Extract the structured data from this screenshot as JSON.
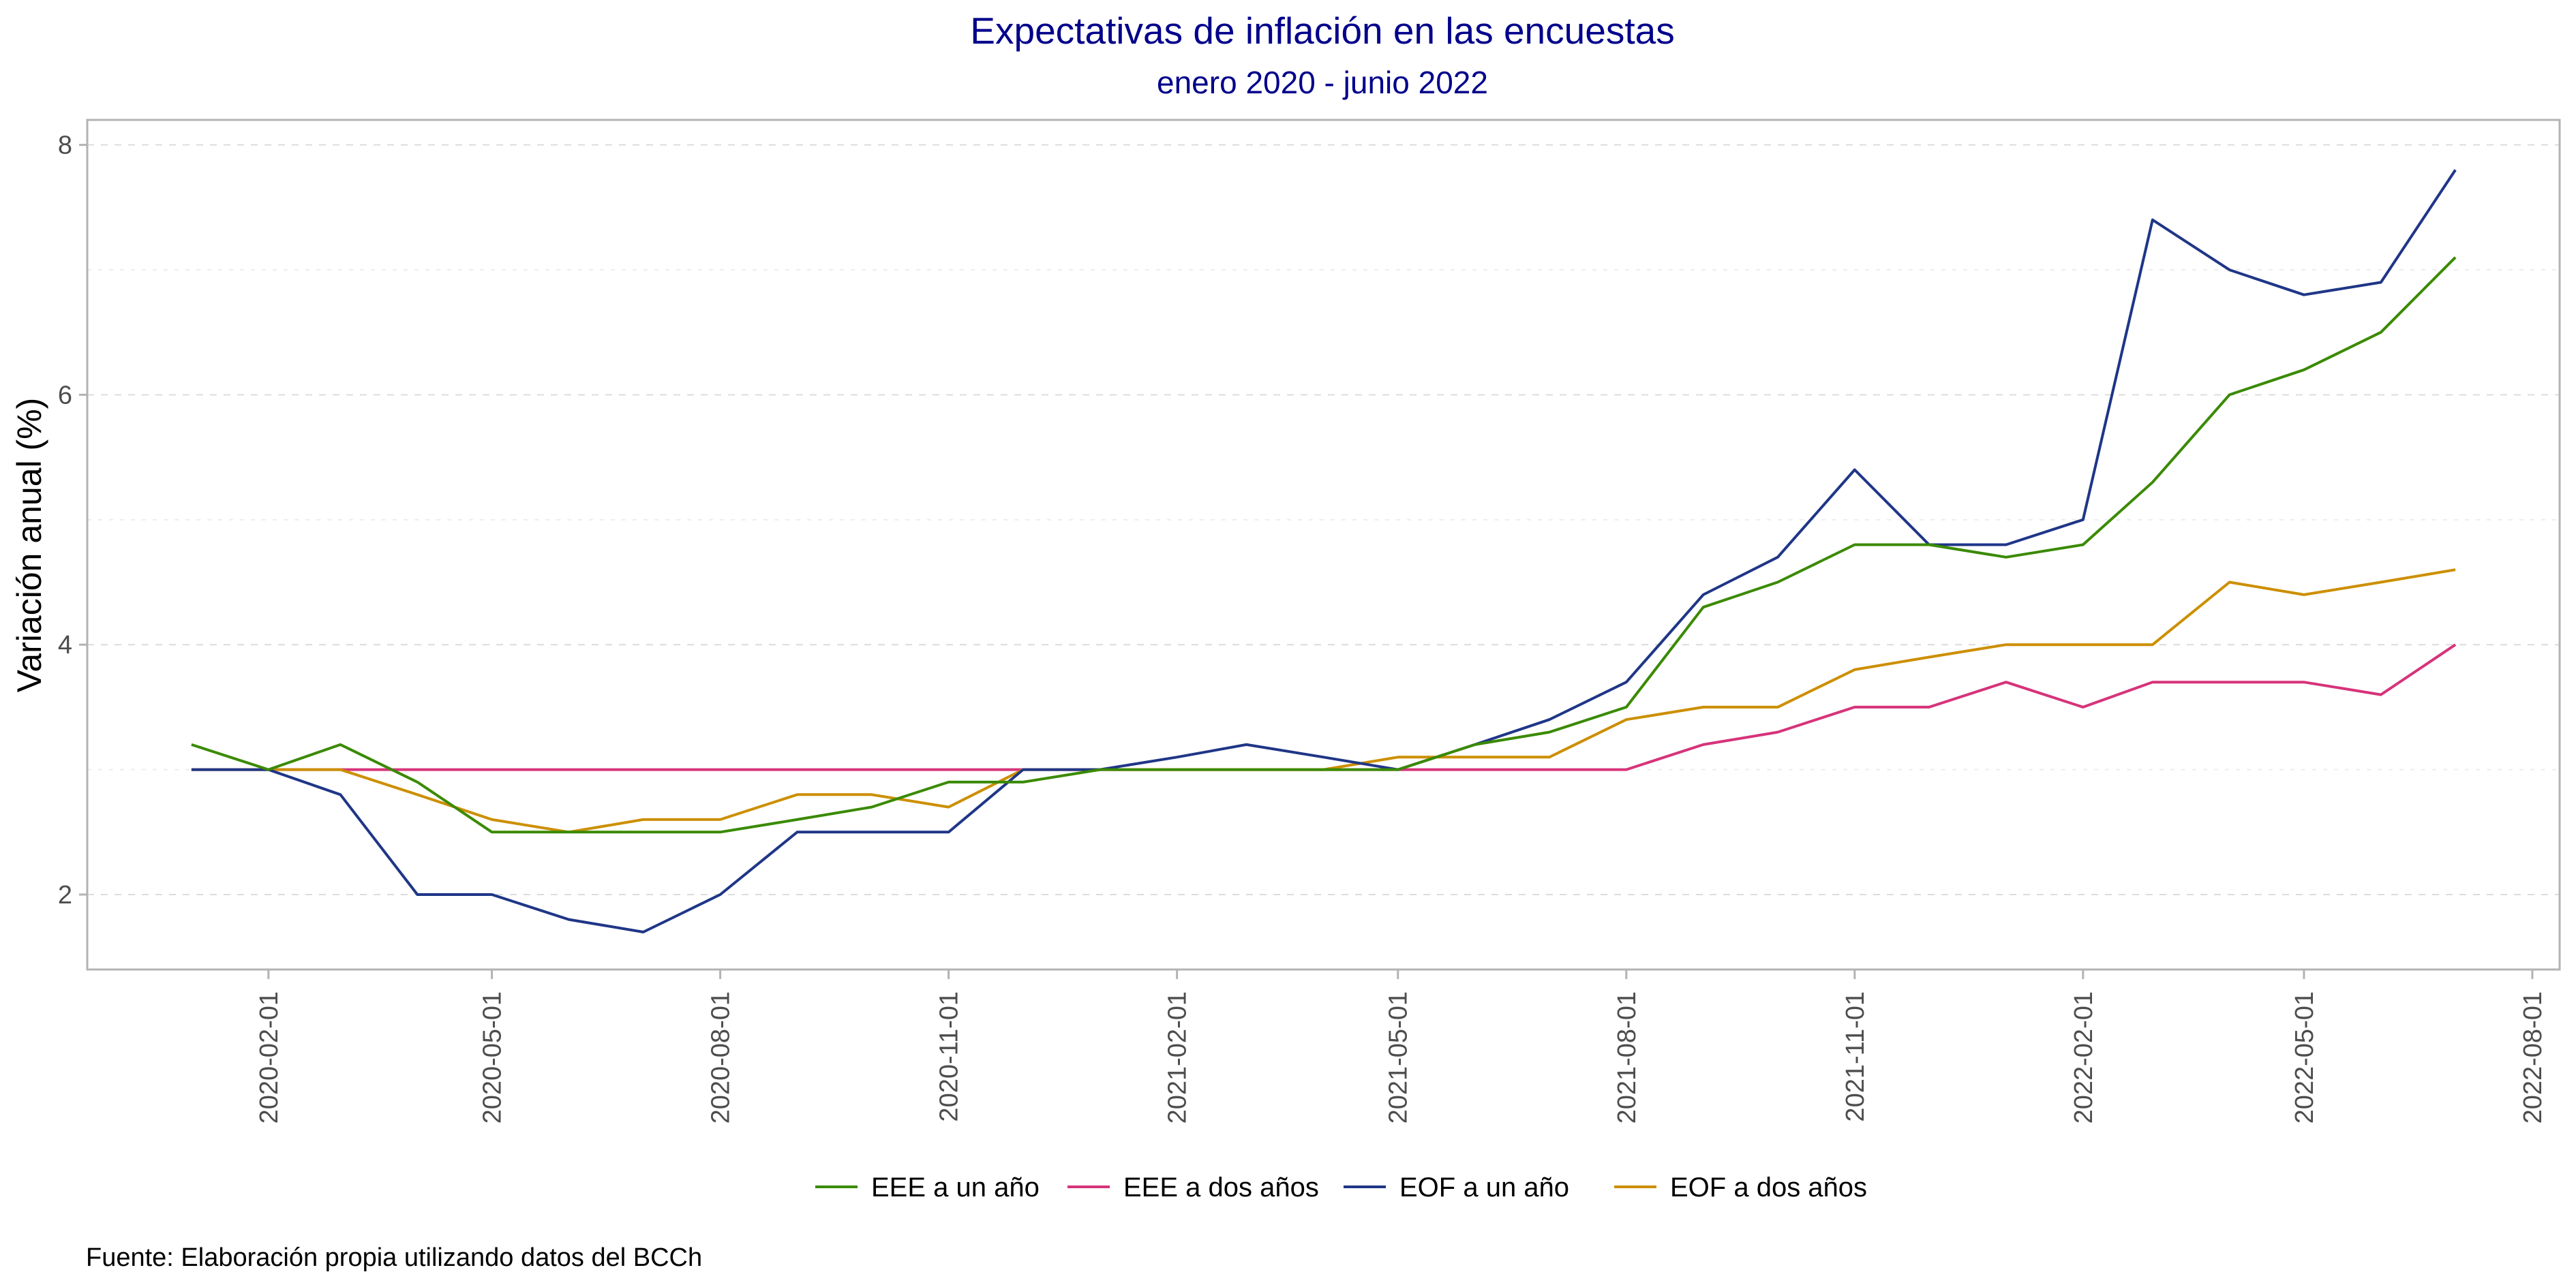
{
  "colors": {
    "title": "#00008b",
    "EEE a un año": "#3a8a00",
    "EEE a dos años": "#d6337a",
    "EOF a un año": "#1f3687",
    "EOF a dos años": "#cc8f00"
  },
  "chart_data": {
    "type": "line",
    "title": "Expectativas de inflación en las encuestas",
    "subtitle": "enero 2020 - junio 2022",
    "ylabel": "Variación anual (%)",
    "caption": "Fuente: Elaboración propia utilizando datos del BCCh",
    "ylim": [
      1.4,
      8.2
    ],
    "yticks": [
      2,
      4,
      6,
      8
    ],
    "xlim": [
      "2019-11-20",
      "2022-08-12"
    ],
    "xticks": [
      "2020-02-01",
      "2020-05-01",
      "2020-08-01",
      "2020-11-01",
      "2021-02-01",
      "2021-05-01",
      "2021-08-01",
      "2021-11-01",
      "2022-02-01",
      "2022-05-01",
      "2022-08-01"
    ],
    "grid": true,
    "legend_position": "bottom",
    "x": [
      "2020-01-01",
      "2020-02-01",
      "2020-03-01",
      "2020-04-01",
      "2020-05-01",
      "2020-06-01",
      "2020-07-01",
      "2020-08-01",
      "2020-09-01",
      "2020-10-01",
      "2020-11-01",
      "2020-12-01",
      "2021-01-01",
      "2021-02-01",
      "2021-03-01",
      "2021-04-01",
      "2021-05-01",
      "2021-06-01",
      "2021-07-01",
      "2021-08-01",
      "2021-09-01",
      "2021-10-01",
      "2021-11-01",
      "2021-12-01",
      "2022-01-01",
      "2022-02-01",
      "2022-03-01",
      "2022-04-01",
      "2022-05-01",
      "2022-06-01",
      "2022-07-01"
    ],
    "series": [
      {
        "name": "EEE a un año",
        "values": [
          3.2,
          3.0,
          3.2,
          2.9,
          2.5,
          2.5,
          2.5,
          2.5,
          2.6,
          2.7,
          2.9,
          2.9,
          3.0,
          3.0,
          3.0,
          3.0,
          3.0,
          3.2,
          3.3,
          3.5,
          4.3,
          4.5,
          4.8,
          4.8,
          4.7,
          4.8,
          5.3,
          6.0,
          6.2,
          6.5,
          7.1
        ]
      },
      {
        "name": "EEE a dos años",
        "values": [
          3.0,
          3.0,
          3.0,
          3.0,
          3.0,
          3.0,
          3.0,
          3.0,
          3.0,
          3.0,
          3.0,
          3.0,
          3.0,
          3.0,
          3.0,
          3.0,
          3.0,
          3.0,
          3.0,
          3.0,
          3.2,
          3.3,
          3.5,
          3.5,
          3.7,
          3.5,
          3.7,
          3.7,
          3.7,
          3.6,
          4.0
        ]
      },
      {
        "name": "EOF a un año",
        "values": [
          3.0,
          3.0,
          2.8,
          2.0,
          2.0,
          1.8,
          1.7,
          2.0,
          2.5,
          2.5,
          2.5,
          3.0,
          3.0,
          3.1,
          3.2,
          3.1,
          3.0,
          3.2,
          3.4,
          3.7,
          4.4,
          4.7,
          5.4,
          4.8,
          4.8,
          5.0,
          7.4,
          7.0,
          6.8,
          6.9,
          7.8
        ]
      },
      {
        "name": "EOF a dos años",
        "values": [
          3.0,
          3.0,
          3.0,
          2.8,
          2.6,
          2.5,
          2.6,
          2.6,
          2.8,
          2.8,
          2.7,
          3.0,
          3.0,
          3.0,
          3.0,
          3.0,
          3.1,
          3.1,
          3.1,
          3.4,
          3.5,
          3.5,
          3.8,
          3.9,
          4.0,
          4.0,
          4.0,
          4.5,
          4.4,
          4.5,
          4.6
        ]
      }
    ]
  }
}
